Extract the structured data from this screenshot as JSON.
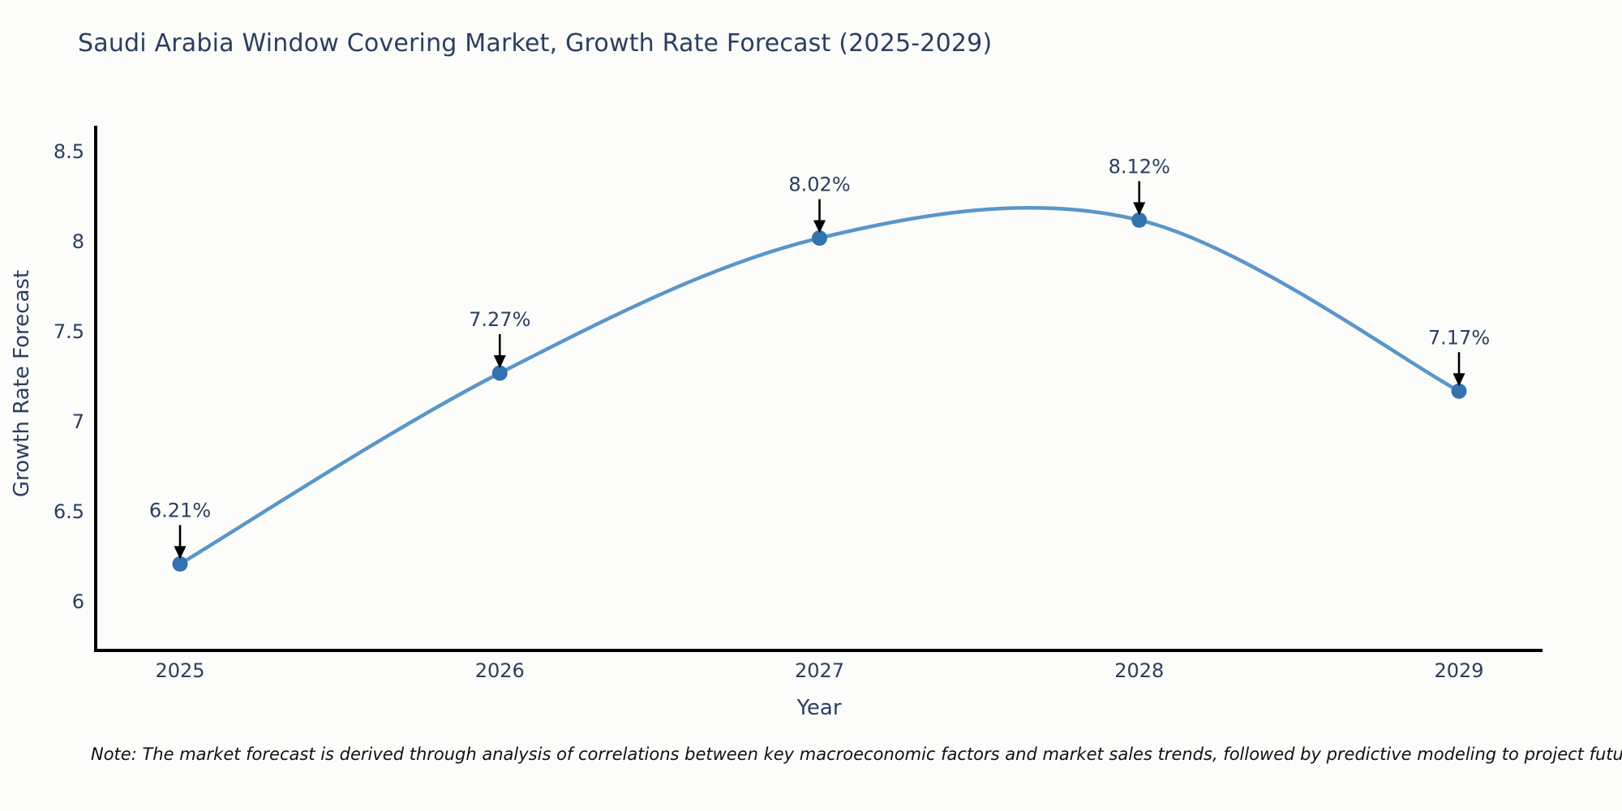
{
  "title": "Saudi Arabia Window Covering Market, Growth Rate Forecast (2025-2029)",
  "note": "Note: The market forecast is derived through analysis of correlations between key macroeconomic factors and market sales trends, followed by predictive modeling to project future sales",
  "chart_data": {
    "type": "line",
    "title": "Saudi Arabia Window Covering Market, Growth Rate Forecast (2025-2029)",
    "xlabel": "Year",
    "ylabel": "Growth Rate Forecast",
    "categories": [
      "2025",
      "2026",
      "2027",
      "2028",
      "2029"
    ],
    "series": [
      {
        "name": "Growth Rate Forecast",
        "values": [
          6.21,
          7.27,
          8.02,
          8.12,
          7.17
        ],
        "data_labels": [
          "6.21%",
          "7.27%",
          "8.02%",
          "8.12%",
          "7.17%"
        ]
      }
    ],
    "yticks": [
      6,
      6.5,
      7,
      7.5,
      8,
      8.5
    ],
    "ylim": [
      5.74,
      8.66
    ],
    "line_shape": "spline",
    "grid": false,
    "legend_position": "none",
    "annotations_have_arrows": true,
    "colors": {
      "line": "#5a96c8",
      "marker": "#3273af",
      "axis": "#000000",
      "tick_text": "#2a3f5f",
      "annotation_text": "#2a3f5f",
      "arrow": "#000000",
      "title_text": "#2a3f5f",
      "background": "#fcfcfa"
    }
  }
}
